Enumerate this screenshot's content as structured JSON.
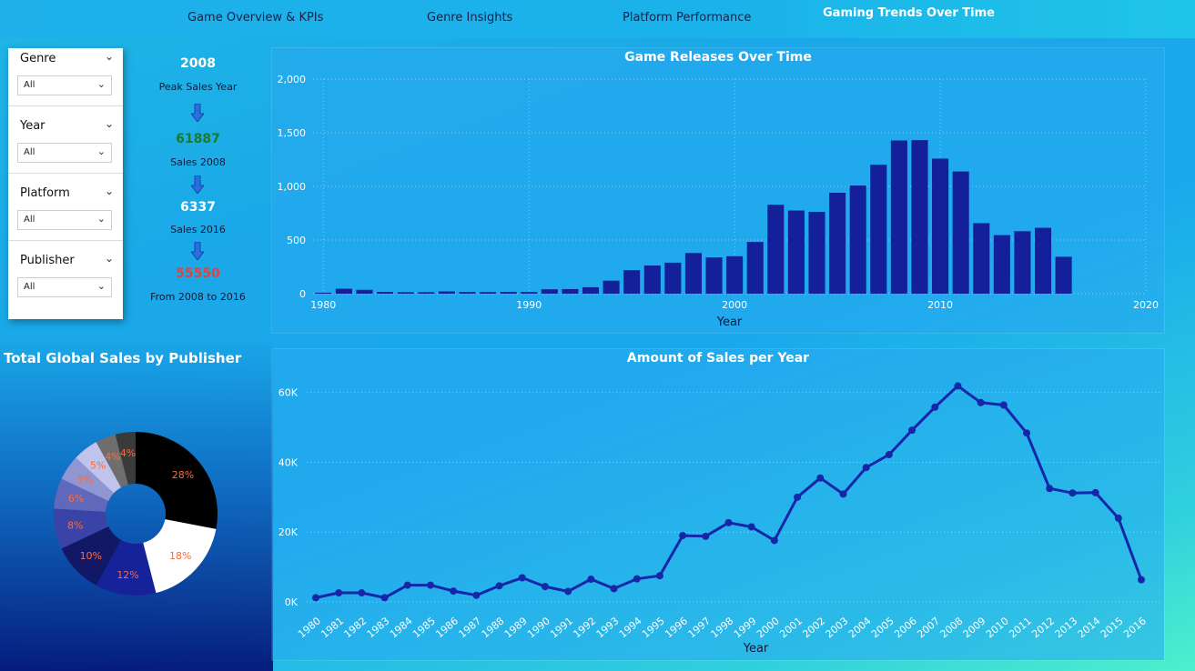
{
  "nav": {
    "tabs": [
      {
        "label": "Game Overview & KPIs",
        "active": false
      },
      {
        "label": "Genre Insights",
        "active": false
      },
      {
        "label": "Platform Performance",
        "active": false
      },
      {
        "label": "Gaming Trends Over Time",
        "active": true
      }
    ]
  },
  "slicers": [
    {
      "title": "Genre",
      "value": "All"
    },
    {
      "title": "Year",
      "value": "All"
    },
    {
      "title": "Platform",
      "value": "All"
    },
    {
      "title": "Publisher",
      "value": "All"
    }
  ],
  "kpis": {
    "peak_year": "2008",
    "peak_year_label": "Peak Sales Year",
    "sales_2008": "61887",
    "sales_2008_label": "Sales 2008",
    "sales_2016": "6337",
    "sales_2016_label": "Sales 2016",
    "change": "55550",
    "change_label": "From 2008 to 2016",
    "colors": {
      "peak": "#ffffff",
      "sales_2008": "#1a7a2e",
      "sales_2016": "#ffffff",
      "change": "#e0443e"
    }
  },
  "chart_data": [
    {
      "type": "bar",
      "title": "Game Releases Over Time",
      "xlabel": "Year",
      "ylabel": "",
      "x": [
        1980,
        1981,
        1982,
        1983,
        1984,
        1985,
        1986,
        1987,
        1988,
        1989,
        1990,
        1991,
        1992,
        1993,
        1994,
        1995,
        1996,
        1997,
        1998,
        1999,
        2000,
        2001,
        2002,
        2003,
        2004,
        2005,
        2006,
        2007,
        2008,
        2009,
        2010,
        2011,
        2012,
        2013,
        2014,
        2015,
        2016
      ],
      "values": [
        9,
        46,
        36,
        17,
        14,
        14,
        21,
        16,
        15,
        17,
        16,
        41,
        43,
        60,
        121,
        219,
        263,
        289,
        379,
        338,
        349,
        482,
        829,
        775,
        763,
        941,
        1008,
        1202,
        1428,
        1431,
        1259,
        1139,
        657,
        546,
        582,
        614,
        344
      ],
      "xlim": [
        1979.5,
        2020
      ],
      "ylim": [
        0,
        2000
      ],
      "yticks": [
        0,
        500,
        1000,
        1500,
        2000
      ],
      "ytick_labels": [
        "0",
        "500",
        "1,000",
        "1,500",
        "2,000"
      ],
      "xticks": [
        1980,
        1990,
        2000,
        2010,
        2020
      ],
      "bar_color": "#13209a",
      "grid": true
    },
    {
      "type": "line",
      "title": "Amount of Sales per Year",
      "xlabel": "Year",
      "ylabel": "",
      "x": [
        1980,
        1981,
        1982,
        1983,
        1984,
        1985,
        1986,
        1987,
        1988,
        1989,
        1990,
        1991,
        1992,
        1993,
        1994,
        1995,
        1996,
        1997,
        1998,
        1999,
        2000,
        2001,
        2002,
        2003,
        2004,
        2005,
        2006,
        2007,
        2008,
        2009,
        2010,
        2011,
        2012,
        2013,
        2014,
        2015,
        2016
      ],
      "values": [
        1200,
        2600,
        2600,
        1200,
        4800,
        4800,
        3100,
        1900,
        4600,
        6900,
        4400,
        3000,
        6500,
        3800,
        6600,
        7500,
        19000,
        18800,
        22700,
        21500,
        17600,
        30000,
        35500,
        30900,
        38500,
        42200,
        49200,
        55800,
        61887,
        57100,
        56400,
        48400,
        32500,
        31200,
        31300,
        24000,
        6337
      ],
      "ylim": [
        0,
        62000
      ],
      "yticks": [
        0,
        20000,
        40000,
        60000
      ],
      "ytick_labels": [
        "0K",
        "20K",
        "40K",
        "60K"
      ],
      "line_color": "#1526a8",
      "grid": true
    },
    {
      "type": "pie",
      "title": "Total Global Sales by Publisher",
      "donut": true,
      "labels": [
        "28%",
        "18%",
        "12%",
        "10%",
        "8%",
        "6%",
        "5%",
        "5%",
        "4%",
        "4%"
      ],
      "values": [
        28,
        18,
        12,
        10,
        8,
        6,
        5,
        5,
        4,
        4
      ],
      "colors": [
        "#000000",
        "#ffffff",
        "#16229a",
        "#121866",
        "#3a44a6",
        "#6068bc",
        "#8f96d2",
        "#c0c4ea",
        "#6e6e6e",
        "#3a3a3a"
      ],
      "label_color": "#ff6a3a"
    }
  ]
}
